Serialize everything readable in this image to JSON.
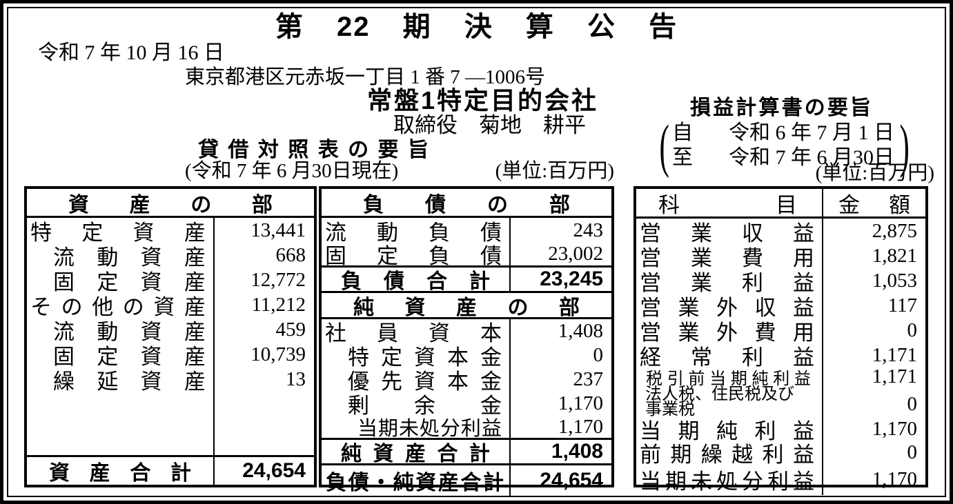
{
  "header": {
    "title": "第 22 期 決 算 公 告",
    "date": "令和 7 年 10 月 16 日",
    "address": "東京都港区元赤坂一丁目 1 番 7 —1006号",
    "company": "常盤1特定目的会社",
    "officer": "取締役　菊地　耕平"
  },
  "balance_sheet": {
    "heading": "貸借対照表の要旨",
    "as_of": "(令和 7 年 6 月30日現在)",
    "unit": "(単位:百万円)",
    "assets": {
      "section": "資産の部",
      "rows": [
        {
          "label": "特定資産",
          "value": "13,441"
        },
        {
          "label": "流動資産",
          "value": "668"
        },
        {
          "label": "固定資産",
          "value": "12,772"
        },
        {
          "label": "その他の資産",
          "value": "11,212"
        },
        {
          "label": "流動資産",
          "value": "459"
        },
        {
          "label": "固定資産",
          "value": "10,739"
        },
        {
          "label": "繰延資産",
          "value": "13"
        }
      ],
      "total": {
        "label": "資産合計",
        "value": "24,654"
      }
    },
    "liabilities": {
      "section": "負債の部",
      "rows": [
        {
          "label": "流動負債",
          "value": "243"
        },
        {
          "label": "固定負債",
          "value": "23,002"
        }
      ],
      "total": {
        "label": "負債合計",
        "value": "23,245"
      }
    },
    "net_assets": {
      "section": "純資産の部",
      "rows": [
        {
          "label": "社員資本",
          "value": "1,408"
        },
        {
          "label": "特定資本金",
          "value": "0"
        },
        {
          "label": "優先資本金",
          "value": "237"
        },
        {
          "label": "剰余金",
          "value": "1,170"
        },
        {
          "label": "当期未処分利益",
          "value": "1,170"
        }
      ],
      "total": {
        "label": "純資産合計",
        "value": "1,408"
      },
      "grand_total": {
        "label": "負債・純資産合計",
        "value": "24,654"
      }
    }
  },
  "income_statement": {
    "heading": "損益計算書の要旨",
    "period_from_prefix": "自",
    "period_from_date": "令和 6 年 7 月 1 日",
    "period_to_prefix": "至",
    "period_to_date": "令和 7 年 6 月30日",
    "unit": "(単位:百万円)",
    "col_item": "科目",
    "col_amount": "金額",
    "rows": [
      {
        "label": "営業収益",
        "value": "2,875"
      },
      {
        "label": "営業費用",
        "value": "1,821"
      },
      {
        "label": "営業利益",
        "value": "1,053"
      },
      {
        "label": "営業外収益",
        "value": "117"
      },
      {
        "label": "営業外費用",
        "value": "0"
      },
      {
        "label": "経常利益",
        "value": "1,171"
      },
      {
        "label": "税引前当期純利益",
        "value": "1,171"
      },
      {
        "label": "法人税、住民税及び事業税",
        "value": "0"
      },
      {
        "label": "当期純利益",
        "value": "1,170"
      },
      {
        "label": "前期繰越利益",
        "value": "0"
      },
      {
        "label": "当期未処分利益",
        "value": "1,170"
      }
    ]
  }
}
